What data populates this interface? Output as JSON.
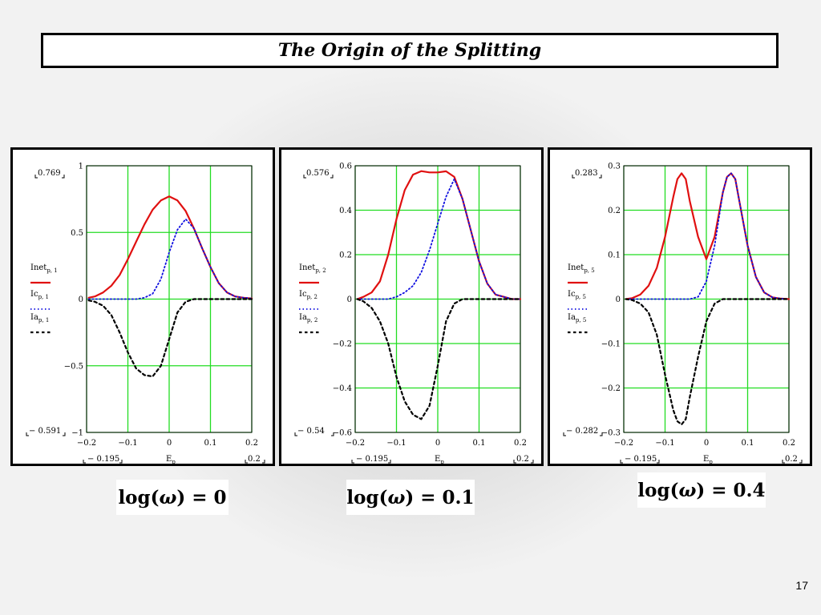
{
  "title": "The Origin of the Splitting",
  "page_number": "17",
  "colors": {
    "net": "#e01010",
    "coherent": "#1010e0",
    "absorption": "#000000",
    "grid": "#22dd22"
  },
  "chart_data": [
    {
      "type": "line",
      "caption": {
        "prefix": "log(",
        "symbol": "ω",
        "suffix": ") = 0"
      },
      "xlabel": {
        "main": "E",
        "sub": "p"
      },
      "xlim": [
        -0.2,
        0.2
      ],
      "ylim": [
        -1,
        1
      ],
      "xticks": [
        -0.2,
        -0.1,
        0,
        0.1,
        0.2
      ],
      "xtick_labels": [
        "−0.2",
        "−0.1",
        "0",
        "0.1",
        "0.2"
      ],
      "yticks": [
        1,
        0.5,
        0,
        -0.5,
        -1
      ],
      "ytick_labels": [
        "1",
        "0.5",
        "0",
        "−0.5",
        "−1"
      ],
      "ymax_readout": "0.769",
      "ymin_readout": "− 0.591",
      "xmin_readout": "− 0.195",
      "xmax_readout": "0.2",
      "grid": true,
      "x": [
        -0.195,
        -0.18,
        -0.16,
        -0.14,
        -0.12,
        -0.1,
        -0.08,
        -0.06,
        -0.04,
        -0.02,
        0,
        0.02,
        0.04,
        0.06,
        0.08,
        0.1,
        0.12,
        0.14,
        0.16,
        0.18,
        0.2
      ],
      "series": [
        {
          "name": "Inet",
          "subscript": "p, 1",
          "style": "solid",
          "values": [
            0.01,
            0.02,
            0.05,
            0.1,
            0.18,
            0.3,
            0.43,
            0.56,
            0.67,
            0.74,
            0.77,
            0.74,
            0.66,
            0.53,
            0.38,
            0.24,
            0.12,
            0.05,
            0.02,
            0.01,
            0.005
          ]
        },
        {
          "name": "Ic",
          "subscript": "p, 1",
          "style": "dotted",
          "values": [
            0,
            0,
            0,
            0,
            0,
            0,
            0,
            0.01,
            0.04,
            0.15,
            0.35,
            0.52,
            0.6,
            0.53,
            0.38,
            0.24,
            0.12,
            0.05,
            0.02,
            0.01,
            0.005
          ]
        },
        {
          "name": "Ia",
          "subscript": "p, 1",
          "style": "dashed",
          "values": [
            -0.01,
            -0.02,
            -0.05,
            -0.12,
            -0.25,
            -0.4,
            -0.52,
            -0.57,
            -0.58,
            -0.5,
            -0.3,
            -0.1,
            -0.02,
            0,
            0,
            0,
            0,
            0,
            0,
            0,
            0
          ]
        }
      ]
    },
    {
      "type": "line",
      "caption": {
        "prefix": "log(",
        "symbol": "ω",
        "suffix": ") = 0.1"
      },
      "xlabel": {
        "main": "E",
        "sub": "p"
      },
      "xlim": [
        -0.2,
        0.2
      ],
      "ylim": [
        -0.6,
        0.6
      ],
      "xticks": [
        -0.2,
        -0.1,
        0,
        0.1,
        0.2
      ],
      "xtick_labels": [
        "−0.2",
        "−0.1",
        "0",
        "0.1",
        "0.2"
      ],
      "yticks": [
        0.6,
        0.4,
        0.2,
        0,
        -0.2,
        -0.4,
        -0.6
      ],
      "ytick_labels": [
        "0.6",
        "0.4",
        "0.2",
        "0",
        "−0.2",
        "−0.4",
        "−0.6"
      ],
      "ymax_readout": "0.576",
      "ymin_readout": "− 0.54",
      "xmin_readout": "− 0.195",
      "xmax_readout": "0.2",
      "grid": true,
      "x": [
        -0.195,
        -0.18,
        -0.16,
        -0.14,
        -0.12,
        -0.1,
        -0.08,
        -0.06,
        -0.04,
        -0.02,
        0,
        0.02,
        0.04,
        0.06,
        0.08,
        0.1,
        0.12,
        0.14,
        0.16,
        0.18,
        0.2
      ],
      "series": [
        {
          "name": "Inet",
          "subscript": "p, 2",
          "style": "solid",
          "values": [
            0,
            0.01,
            0.03,
            0.08,
            0.2,
            0.36,
            0.49,
            0.56,
            0.576,
            0.57,
            0.57,
            0.575,
            0.55,
            0.45,
            0.31,
            0.17,
            0.07,
            0.02,
            0.01,
            0,
            0
          ]
        },
        {
          "name": "Ic",
          "subscript": "p, 2",
          "style": "dotted",
          "values": [
            0,
            0,
            0,
            0,
            0,
            0.01,
            0.03,
            0.06,
            0.12,
            0.22,
            0.34,
            0.46,
            0.54,
            0.45,
            0.31,
            0.17,
            0.07,
            0.02,
            0.01,
            0,
            0
          ]
        },
        {
          "name": "Ia",
          "subscript": "p, 2",
          "style": "dashed",
          "values": [
            0,
            -0.01,
            -0.04,
            -0.1,
            -0.2,
            -0.35,
            -0.46,
            -0.52,
            -0.54,
            -0.48,
            -0.3,
            -0.1,
            -0.02,
            0,
            0,
            0,
            0,
            0,
            0,
            0,
            0
          ]
        }
      ]
    },
    {
      "type": "line",
      "caption": {
        "prefix": "log(",
        "symbol": "ω",
        "suffix": ") = 0.4"
      },
      "xlabel": {
        "main": "E",
        "sub": "p"
      },
      "xlim": [
        -0.2,
        0.2
      ],
      "ylim": [
        -0.3,
        0.3
      ],
      "xticks": [
        -0.2,
        -0.1,
        0,
        0.1,
        0.2
      ],
      "xtick_labels": [
        "−0.2",
        "−0.1",
        "0",
        "0.1",
        "0.2"
      ],
      "yticks": [
        0.3,
        0.2,
        0.1,
        0,
        -0.1,
        -0.2,
        -0.3
      ],
      "ytick_labels": [
        "0.3",
        "0.2",
        "0.1",
        "0",
        "−0.1",
        "−0.2",
        "−0.3"
      ],
      "ymax_readout": "0.283",
      "ymin_readout": "− 0.282",
      "xmin_readout": "− 0.195",
      "xmax_readout": "0.2",
      "grid": true,
      "x": [
        -0.195,
        -0.18,
        -0.16,
        -0.14,
        -0.12,
        -0.1,
        -0.08,
        -0.07,
        -0.06,
        -0.05,
        -0.04,
        -0.02,
        0,
        0.02,
        0.04,
        0.05,
        0.06,
        0.07,
        0.08,
        0.1,
        0.12,
        0.14,
        0.16,
        0.18,
        0.2
      ],
      "series": [
        {
          "name": "Inet",
          "subscript": "p, 5",
          "style": "solid",
          "values": [
            0,
            0.002,
            0.01,
            0.03,
            0.07,
            0.14,
            0.23,
            0.27,
            0.283,
            0.27,
            0.22,
            0.14,
            0.09,
            0.14,
            0.24,
            0.275,
            0.283,
            0.27,
            0.22,
            0.12,
            0.05,
            0.015,
            0.004,
            0.001,
            0
          ]
        },
        {
          "name": "Ic",
          "subscript": "p, 5",
          "style": "dotted",
          "values": [
            0,
            0,
            0,
            0,
            0,
            0,
            0,
            0,
            0,
            0,
            0,
            0.005,
            0.04,
            0.12,
            0.24,
            0.275,
            0.283,
            0.27,
            0.22,
            0.12,
            0.05,
            0.015,
            0.004,
            0.001,
            0
          ]
        },
        {
          "name": "Ia",
          "subscript": "p, 5",
          "style": "dashed",
          "values": [
            0,
            -0.002,
            -0.01,
            -0.03,
            -0.08,
            -0.17,
            -0.25,
            -0.275,
            -0.282,
            -0.27,
            -0.22,
            -0.13,
            -0.05,
            -0.01,
            0,
            0,
            0,
            0,
            0,
            0,
            0,
            0,
            0,
            0,
            0
          ]
        }
      ]
    }
  ]
}
